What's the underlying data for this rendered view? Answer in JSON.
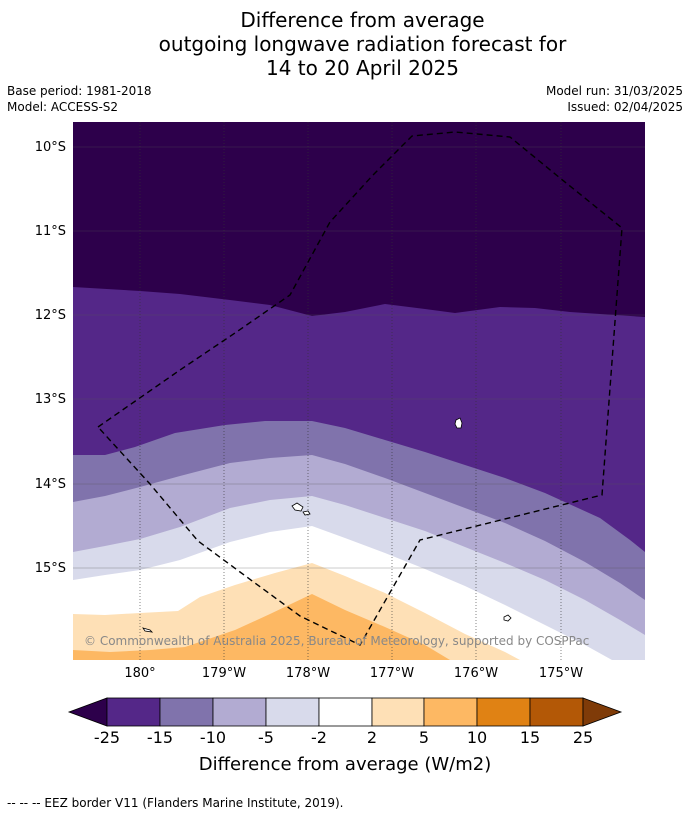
{
  "title": {
    "line1": "Difference from average",
    "line2": "outgoing longwave radiation forecast for",
    "line3": "14 to 20 April 2025"
  },
  "meta": {
    "base_period": "Base period: 1981-2018",
    "model": "Model: ACCESS-S2",
    "model_run": "Model run: 31/03/2025",
    "issued": "Issued: 02/04/2025"
  },
  "map": {
    "lat_labels": [
      "10°S",
      "11°S",
      "12°S",
      "13°S",
      "14°S",
      "15°S"
    ],
    "lon_labels": [
      "180°",
      "179°W",
      "178°W",
      "177°W",
      "176°W",
      "175°W"
    ],
    "copyright": "© Commonwealth of Australia 2025, Bureau of Meteorology, supported by COSPPac",
    "colors": {
      "lt_-25": "#2d004b",
      "-25_-15": "#542788",
      "-15_-10": "#8073ac",
      "-10_-5": "#b2abd2",
      "-5_-2": "#d8daeb",
      "-2_2": "#ffffff",
      "2_5": "#fee0b6",
      "5_10": "#fdb863",
      "10_15": "#e08214",
      "15_25": "#b35806",
      "gt_25": "#7f3b08"
    }
  },
  "colorbar": {
    "tick_labels": [
      "-25",
      "-15",
      "-10",
      "-5",
      "-2",
      "2",
      "5",
      "10",
      "15",
      "25"
    ],
    "title": "Difference from average (W/m2)"
  },
  "footer": {
    "legend_text": "--  --  -- EEZ border V11 (Flanders Marine Institute, 2019)."
  }
}
